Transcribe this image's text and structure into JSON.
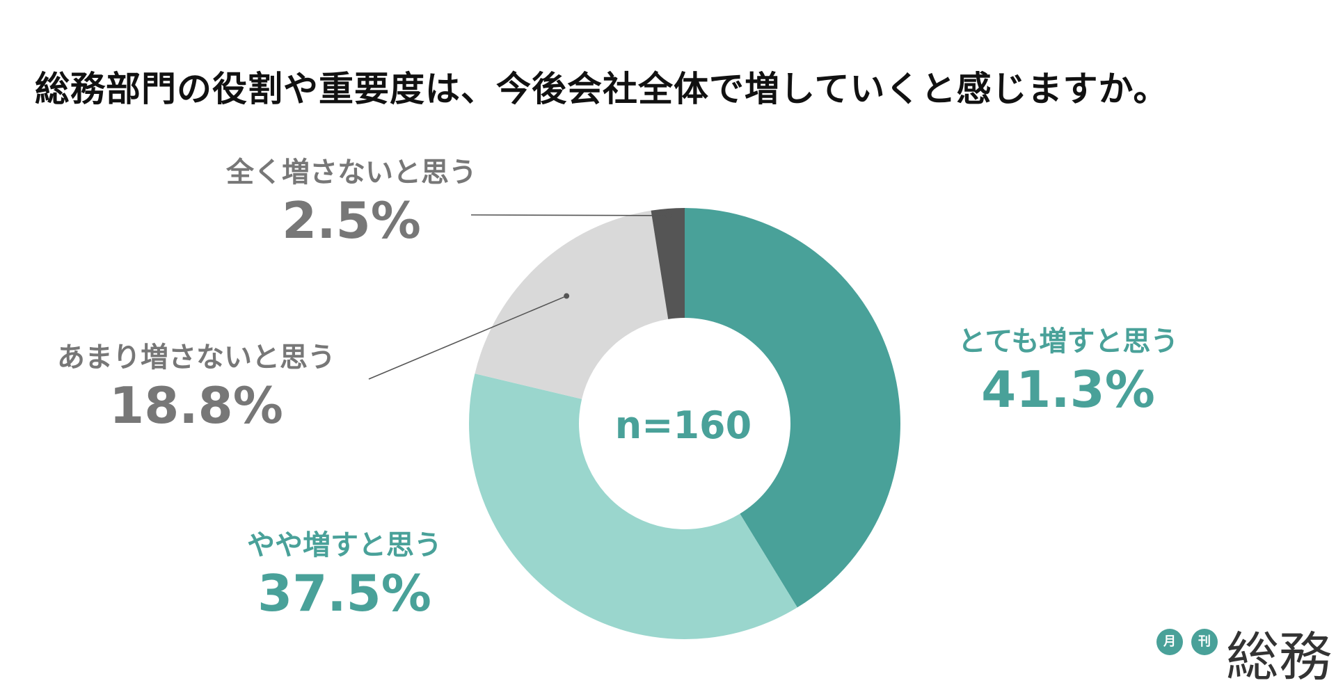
{
  "chart_data": {
    "type": "pie",
    "title": "総務部門の役割や重要度は、今後会社全体で増していくと感じますか。",
    "center_label": "n=160",
    "categories": [
      "とても増すと思う",
      "やや増すと思う",
      "あまり増さないと思う",
      "全く増さないと思う"
    ],
    "values": [
      41.3,
      37.5,
      18.8,
      2.5
    ],
    "value_labels": [
      "41.3%",
      "37.5%",
      "18.8%",
      "2.5%"
    ],
    "colors": [
      "#49a199",
      "#9ad6cd",
      "#d9d9d9",
      "#555555"
    ],
    "label_colors": [
      "#49a199",
      "#49a199",
      "#777777",
      "#777777"
    ],
    "donut": true,
    "legend": "none"
  },
  "logo": {
    "badge_1": "月",
    "badge_2": "刊",
    "word": "総務"
  }
}
